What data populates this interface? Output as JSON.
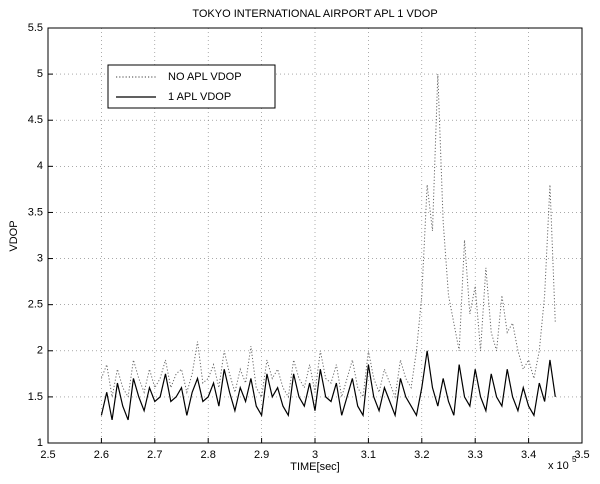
{
  "chart_data": {
    "type": "line",
    "title": "TOKYO INTERNATIONAL AIRPORT APL 1 VDOP",
    "x_label": "TIME[sec]",
    "y_label": "VDOP",
    "x_multiplier": "x 10",
    "x_multiplier_exponent": "5",
    "xlim": [
      2.5,
      3.5
    ],
    "xticks": [
      2.5,
      2.6,
      2.7,
      2.8,
      2.9,
      3,
      3.1,
      3.2,
      3.3,
      3.4,
      3.5
    ],
    "ylim": [
      1,
      5.5
    ],
    "yticks": [
      1,
      1.5,
      2,
      2.5,
      3,
      3.5,
      4,
      4.5,
      5,
      5.5
    ],
    "grid": true,
    "legend": "upper left",
    "x": [
      2.6,
      2.61,
      2.62,
      2.63,
      2.64,
      2.65,
      2.66,
      2.67,
      2.68,
      2.69,
      2.7,
      2.71,
      2.72,
      2.73,
      2.74,
      2.75,
      2.76,
      2.77,
      2.78,
      2.79,
      2.8,
      2.81,
      2.82,
      2.83,
      2.84,
      2.85,
      2.86,
      2.87,
      2.88,
      2.89,
      2.9,
      2.91,
      2.92,
      2.93,
      2.94,
      2.95,
      2.96,
      2.97,
      2.98,
      2.99,
      3.0,
      3.01,
      3.02,
      3.03,
      3.04,
      3.05,
      3.06,
      3.07,
      3.08,
      3.09,
      3.1,
      3.11,
      3.12,
      3.13,
      3.14,
      3.15,
      3.16,
      3.17,
      3.18,
      3.19,
      3.2,
      3.21,
      3.22,
      3.23,
      3.24,
      3.25,
      3.26,
      3.27,
      3.28,
      3.29,
      3.3,
      3.31,
      3.32,
      3.33,
      3.34,
      3.35,
      3.36,
      3.37,
      3.38,
      3.39,
      3.4,
      3.41,
      3.42,
      3.43,
      3.44,
      3.45
    ],
    "series": [
      {
        "name": "NO APL VDOP",
        "color": "#666666",
        "style": "dotted",
        "values": [
          1.7,
          1.85,
          1.5,
          1.8,
          1.6,
          1.5,
          1.9,
          1.7,
          1.55,
          1.8,
          1.6,
          1.7,
          1.9,
          1.6,
          1.75,
          1.8,
          1.55,
          1.75,
          2.1,
          1.65,
          1.7,
          1.85,
          1.6,
          2.0,
          1.75,
          1.55,
          1.8,
          1.65,
          2.05,
          1.6,
          1.5,
          1.9,
          1.7,
          1.8,
          1.6,
          1.5,
          1.9,
          1.7,
          1.6,
          1.85,
          1.55,
          2.0,
          1.7,
          1.65,
          1.85,
          1.5,
          1.7,
          1.9,
          1.6,
          1.5,
          2.0,
          1.7,
          1.55,
          1.8,
          1.65,
          1.5,
          1.9,
          1.7,
          1.6,
          2.0,
          2.6,
          3.8,
          3.3,
          5.0,
          3.4,
          2.6,
          2.3,
          2.0,
          3.2,
          2.4,
          2.7,
          2.0,
          2.9,
          2.2,
          2.0,
          2.6,
          2.2,
          2.3,
          2.0,
          1.8,
          1.9,
          1.7,
          2.0,
          2.6,
          3.8,
          2.3
        ]
      },
      {
        "name": "1 APL VDOP",
        "color": "#000000",
        "style": "solid",
        "values": [
          1.3,
          1.55,
          1.25,
          1.65,
          1.4,
          1.25,
          1.7,
          1.5,
          1.35,
          1.6,
          1.45,
          1.5,
          1.75,
          1.45,
          1.5,
          1.6,
          1.3,
          1.55,
          1.7,
          1.45,
          1.5,
          1.65,
          1.4,
          1.8,
          1.55,
          1.35,
          1.6,
          1.45,
          1.7,
          1.4,
          1.3,
          1.75,
          1.5,
          1.6,
          1.4,
          1.3,
          1.75,
          1.5,
          1.4,
          1.65,
          1.35,
          1.8,
          1.5,
          1.45,
          1.65,
          1.3,
          1.5,
          1.7,
          1.4,
          1.3,
          1.85,
          1.5,
          1.35,
          1.6,
          1.45,
          1.3,
          1.7,
          1.5,
          1.4,
          1.3,
          1.6,
          2.0,
          1.6,
          1.4,
          1.7,
          1.45,
          1.3,
          1.85,
          1.5,
          1.4,
          1.8,
          1.5,
          1.35,
          1.75,
          1.5,
          1.4,
          1.8,
          1.5,
          1.35,
          1.6,
          1.4,
          1.3,
          1.65,
          1.45,
          1.9,
          1.5
        ]
      }
    ]
  }
}
